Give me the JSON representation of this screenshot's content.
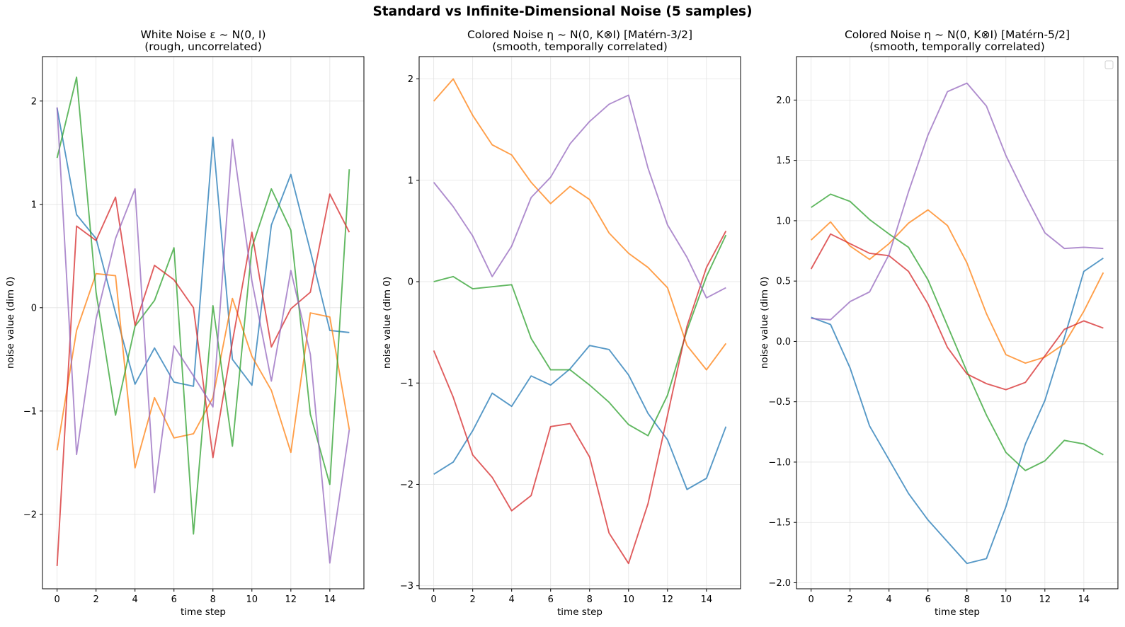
{
  "figure": {
    "suptitle": "Standard vs Infinite-Dimensional Noise (5 samples)"
  },
  "chart_data": [
    {
      "type": "line",
      "title": "White Noise ε ~ N(0, I)",
      "subtitle": "(rough, uncorrelated)",
      "xlabel": "time step",
      "ylabel": "noise value (dim 0)",
      "xlim": [
        -0.75,
        15.75
      ],
      "ylim": [
        -2.72,
        2.43
      ],
      "xticks": [
        0,
        2,
        4,
        6,
        8,
        10,
        12,
        14
      ],
      "yticks": [
        -2,
        -1,
        0,
        1,
        2
      ],
      "ytick_labels": [
        "−2",
        "−1",
        "0",
        "1",
        "2"
      ],
      "grid": true,
      "legend": null,
      "x": [
        0,
        1,
        2,
        3,
        4,
        5,
        6,
        7,
        8,
        9,
        10,
        11,
        12,
        13,
        14,
        15
      ],
      "series": [
        {
          "color": "#1f77b4",
          "values": [
            1.93,
            0.9,
            0.67,
            -0.05,
            -0.74,
            -0.39,
            -0.72,
            -0.76,
            1.65,
            -0.5,
            -0.75,
            0.8,
            1.29,
            0.55,
            -0.22,
            -0.24
          ]
        },
        {
          "color": "#ff7f0e",
          "values": [
            -1.38,
            -0.22,
            0.33,
            0.31,
            -1.55,
            -0.87,
            -1.26,
            -1.22,
            -0.87,
            0.09,
            -0.47,
            -0.8,
            -1.4,
            -0.05,
            -0.09,
            -1.18
          ]
        },
        {
          "color": "#2ca02c",
          "values": [
            1.45,
            2.23,
            0.15,
            -1.04,
            -0.18,
            0.07,
            0.58,
            -2.19,
            0.02,
            -1.34,
            0.58,
            1.15,
            0.75,
            -1.03,
            -1.71,
            1.34
          ]
        },
        {
          "color": "#d62728",
          "values": [
            -2.5,
            0.79,
            0.65,
            1.07,
            -0.17,
            0.41,
            0.27,
            0.0,
            -1.45,
            -0.33,
            0.73,
            -0.38,
            -0.01,
            0.15,
            1.1,
            0.73
          ]
        },
        {
          "color": "#9467bd",
          "values": [
            1.94,
            -1.42,
            -0.11,
            0.67,
            1.15,
            -1.79,
            -0.37,
            -0.66,
            -0.96,
            1.63,
            0.26,
            -0.71,
            0.36,
            -0.45,
            -2.47,
            -1.18
          ]
        }
      ]
    },
    {
      "type": "line",
      "title": "Colored Noise η ~ N(0, K⊗I)  [Matérn-3/2]",
      "subtitle": "(smooth, temporally correlated)",
      "xlabel": "time step",
      "ylabel": "noise value (dim 0)",
      "xlim": [
        -0.75,
        15.75
      ],
      "ylim": [
        -3.03,
        2.22
      ],
      "xticks": [
        0,
        2,
        4,
        6,
        8,
        10,
        12,
        14
      ],
      "yticks": [
        -3,
        -2,
        -1,
        0,
        1,
        2
      ],
      "ytick_labels": [
        "−3",
        "−2",
        "−1",
        "0",
        "1",
        "2"
      ],
      "grid": true,
      "legend": null,
      "x": [
        0,
        1,
        2,
        3,
        4,
        5,
        6,
        7,
        8,
        9,
        10,
        11,
        12,
        13,
        14,
        15
      ],
      "series": [
        {
          "color": "#1f77b4",
          "values": [
            -1.9,
            -1.78,
            -1.47,
            -1.1,
            -1.23,
            -0.93,
            -1.02,
            -0.86,
            -0.63,
            -0.67,
            -0.92,
            -1.3,
            -1.56,
            -2.05,
            -1.94,
            -1.43
          ]
        },
        {
          "color": "#ff7f0e",
          "values": [
            1.78,
            2.0,
            1.64,
            1.35,
            1.25,
            0.98,
            0.77,
            0.94,
            0.81,
            0.48,
            0.28,
            0.14,
            -0.06,
            -0.63,
            -0.87,
            -0.61
          ]
        },
        {
          "color": "#2ca02c",
          "values": [
            0.0,
            0.05,
            -0.07,
            -0.05,
            -0.03,
            -0.56,
            -0.87,
            -0.87,
            -1.02,
            -1.19,
            -1.41,
            -1.52,
            -1.12,
            -0.48,
            0.05,
            0.46
          ]
        },
        {
          "color": "#d62728",
          "values": [
            -0.68,
            -1.14,
            -1.71,
            -1.93,
            -2.26,
            -2.11,
            -1.43,
            -1.4,
            -1.73,
            -2.48,
            -2.78,
            -2.19,
            -1.32,
            -0.44,
            0.14,
            0.5
          ]
        },
        {
          "color": "#9467bd",
          "values": [
            0.98,
            0.74,
            0.45,
            0.05,
            0.35,
            0.83,
            1.03,
            1.36,
            1.58,
            1.75,
            1.84,
            1.12,
            0.56,
            0.24,
            -0.16,
            -0.06
          ]
        }
      ]
    },
    {
      "type": "line",
      "title": "Colored Noise η ~ N(0, K⊗I)  [Matérn-5/2]",
      "subtitle": "(smooth, temporally correlated)",
      "xlabel": "time step",
      "ylabel": "noise value (dim 0)",
      "xlim": [
        -0.75,
        15.75
      ],
      "ylim": [
        -2.05,
        2.36
      ],
      "xticks": [
        0,
        2,
        4,
        6,
        8,
        10,
        12,
        14
      ],
      "yticks": [
        -2.0,
        -1.5,
        -1.0,
        -0.5,
        0.0,
        0.5,
        1.0,
        1.5,
        2.0
      ],
      "ytick_labels": [
        "−2.0",
        "−1.5",
        "−1.0",
        "−0.5",
        "0.0",
        "0.5",
        "1.0",
        "1.5",
        "2.0"
      ],
      "grid": true,
      "legend": "top-right (empty)",
      "x": [
        0,
        1,
        2,
        3,
        4,
        5,
        6,
        7,
        8,
        9,
        10,
        11,
        12,
        13,
        14,
        15
      ],
      "series": [
        {
          "color": "#1f77b4",
          "values": [
            0.2,
            0.14,
            -0.22,
            -0.7,
            -0.98,
            -1.26,
            -1.48,
            -1.66,
            -1.84,
            -1.8,
            -1.37,
            -0.85,
            -0.49,
            0.03,
            0.58,
            0.69
          ]
        },
        {
          "color": "#ff7f0e",
          "values": [
            0.84,
            0.99,
            0.79,
            0.68,
            0.81,
            0.98,
            1.09,
            0.96,
            0.65,
            0.23,
            -0.11,
            -0.18,
            -0.13,
            -0.02,
            0.25,
            0.57
          ]
        },
        {
          "color": "#2ca02c",
          "values": [
            1.11,
            1.22,
            1.16,
            1.01,
            0.89,
            0.78,
            0.51,
            0.13,
            -0.25,
            -0.61,
            -0.92,
            -1.07,
            -0.99,
            -0.82,
            -0.85,
            -0.94
          ]
        },
        {
          "color": "#d62728",
          "values": [
            0.6,
            0.89,
            0.81,
            0.73,
            0.71,
            0.58,
            0.31,
            -0.05,
            -0.27,
            -0.35,
            -0.4,
            -0.34,
            -0.12,
            0.1,
            0.17,
            0.11
          ]
        },
        {
          "color": "#9467bd",
          "values": [
            0.19,
            0.18,
            0.33,
            0.41,
            0.72,
            1.24,
            1.71,
            2.07,
            2.14,
            1.95,
            1.54,
            1.21,
            0.9,
            0.77,
            0.78,
            0.77
          ]
        }
      ]
    }
  ]
}
